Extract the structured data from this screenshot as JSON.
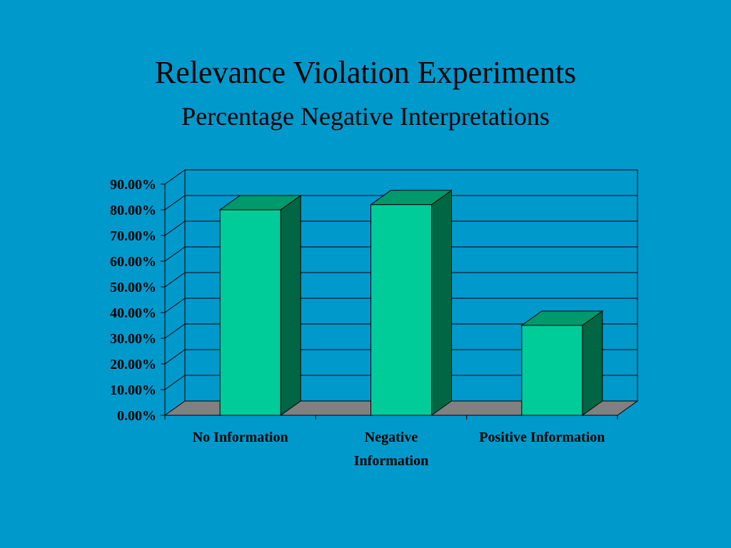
{
  "slide": {
    "title": "Relevance Violation Experiments",
    "subtitle": "Percentage Negative Interpretations"
  },
  "colors": {
    "background": "#0099cc",
    "bar_front": "#00cc99",
    "bar_top": "#00996b",
    "bar_side": "#006644",
    "floor": "#808080"
  },
  "chart_data": {
    "type": "bar",
    "style": "3d",
    "categories": [
      "No Information",
      "Negative Information",
      "Positive Information"
    ],
    "category_label_lines": [
      [
        "No Information"
      ],
      [
        "Negative",
        "Information"
      ],
      [
        "Positive Information"
      ]
    ],
    "values": [
      0.8,
      0.82,
      0.35
    ],
    "ylim": [
      0,
      0.9
    ],
    "yticks": [
      0,
      0.1,
      0.2,
      0.3,
      0.4,
      0.5,
      0.6,
      0.7,
      0.8,
      0.9
    ],
    "ytick_labels": [
      "0.00%",
      "10.00%",
      "20.00%",
      "30.00%",
      "40.00%",
      "50.00%",
      "60.00%",
      "70.00%",
      "80.00%",
      "90.00%"
    ],
    "grid": true,
    "legend": false
  }
}
